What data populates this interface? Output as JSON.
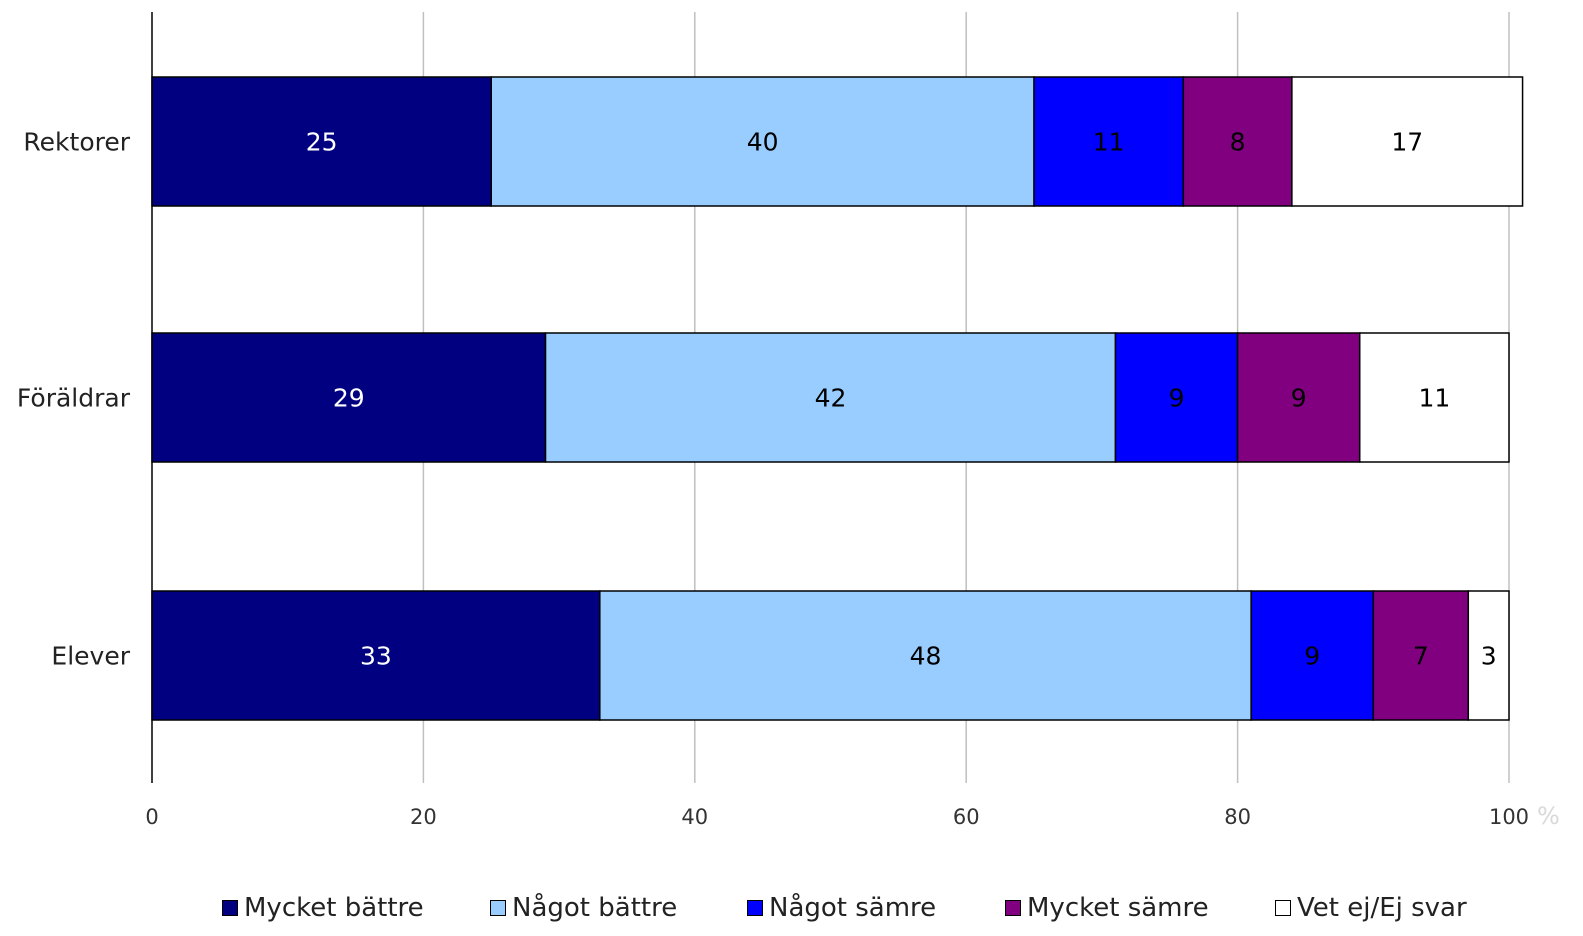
{
  "chart_data": {
    "type": "bar",
    "orientation": "horizontal",
    "stacked": true,
    "categories": [
      "Rektorer",
      "Föräldrar",
      "Elever"
    ],
    "series": [
      {
        "name": "Mycket bättre",
        "color": "#000080",
        "label_color": "#ffffff",
        "values": [
          25,
          29,
          33
        ]
      },
      {
        "name": "Något bättre",
        "color": "#99ccff",
        "label_color": "#000000",
        "values": [
          40,
          42,
          48
        ]
      },
      {
        "name": "Något sämre",
        "color": "#0000ff",
        "label_color": "#000000",
        "values": [
          11,
          9,
          9
        ]
      },
      {
        "name": "Mycket sämre",
        "color": "#800080",
        "label_color": "#000000",
        "values": [
          8,
          9,
          7
        ]
      },
      {
        "name": "Vet ej/Ej svar",
        "color": "#ffffff",
        "label_color": "#000000",
        "values": [
          17,
          11,
          3
        ]
      }
    ],
    "xlim": [
      0,
      100
    ],
    "xticks": [
      "0",
      "20",
      "40",
      "60",
      "80",
      "100"
    ],
    "x_unit": "%",
    "grid": true,
    "legend": "bottom"
  }
}
